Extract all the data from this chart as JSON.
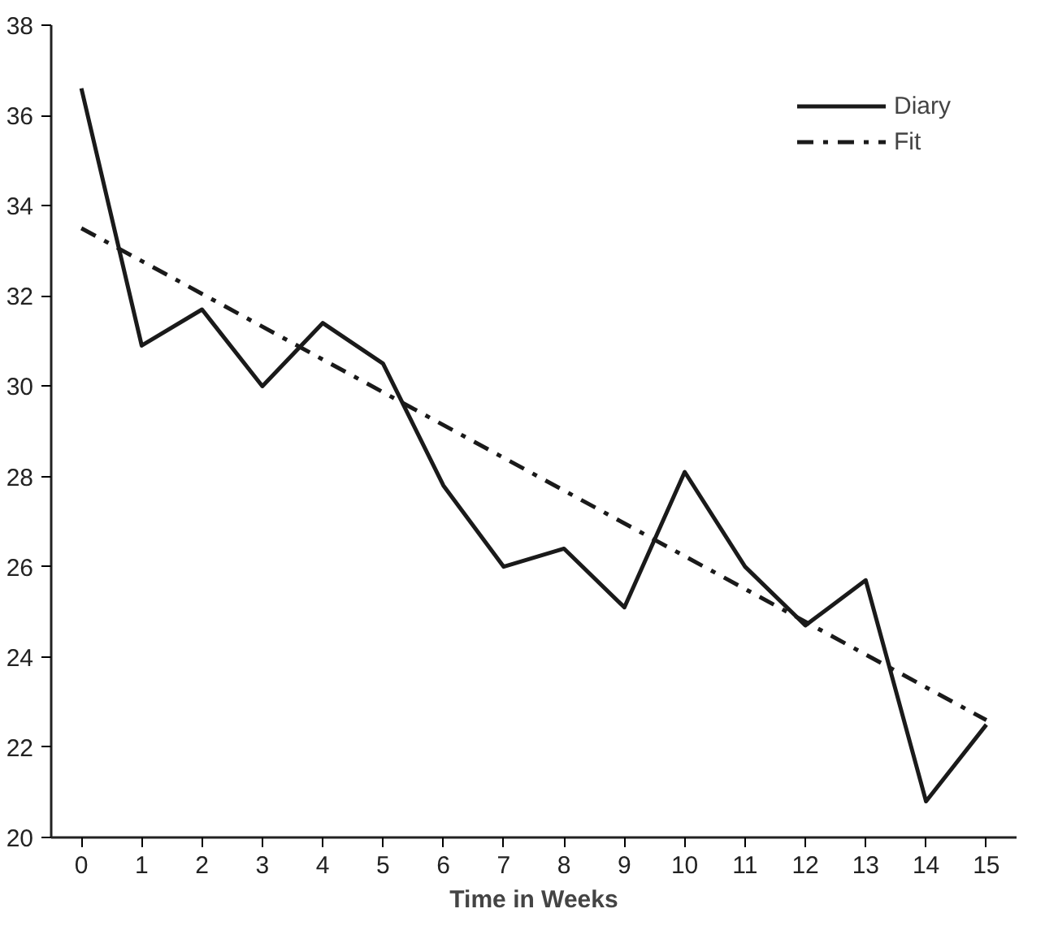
{
  "chart_data": {
    "type": "line",
    "xlabel": "Time in Weeks",
    "x": [
      0,
      1,
      2,
      3,
      4,
      5,
      6,
      7,
      8,
      9,
      10,
      11,
      12,
      13,
      14,
      15
    ],
    "xlim": [
      -0.5,
      15.5
    ],
    "xticks": [
      0,
      1,
      2,
      3,
      4,
      5,
      6,
      7,
      8,
      9,
      10,
      11,
      12,
      13,
      14,
      15
    ],
    "ylim": [
      20,
      38
    ],
    "yticks": [
      20,
      22,
      24,
      26,
      28,
      30,
      32,
      34,
      36,
      38
    ],
    "series": [
      {
        "name": "Diary",
        "color": "#1a1a1a",
        "values": [
          36.6,
          30.9,
          31.7,
          30.0,
          31.4,
          30.5,
          27.8,
          26.0,
          26.4,
          25.1,
          28.1,
          26.0,
          24.7,
          25.7,
          20.8,
          22.5
        ]
      },
      {
        "name": "Fit",
        "color": "#1a1a1a",
        "type": "line",
        "line_style": "dashed",
        "x": [
          0,
          15
        ],
        "values": [
          33.5,
          22.6
        ]
      }
    ],
    "grid": false,
    "legend": "top right"
  }
}
